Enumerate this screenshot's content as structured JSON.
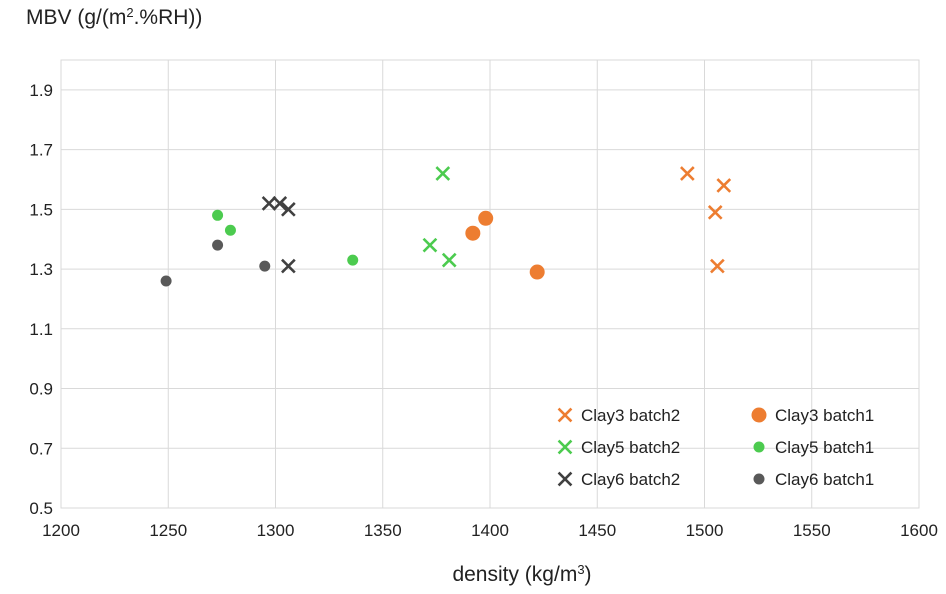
{
  "chart_data": {
    "type": "scatter",
    "title_main": "MBV (g/(m",
    "title_sup": "2",
    "title_rest": ".%RH))",
    "xlabel_main": "density (kg/m",
    "xlabel_sup": "3",
    "xlabel_rest": ")",
    "xlim": [
      1200,
      1600
    ],
    "ylim": [
      0.5,
      2.0
    ],
    "xticks": [
      1200,
      1250,
      1300,
      1350,
      1400,
      1450,
      1500,
      1550,
      1600
    ],
    "yticks": [
      0.5,
      0.7,
      0.9,
      1.1,
      1.3,
      1.5,
      1.7,
      1.9
    ],
    "ytick_labels": [
      "0.5",
      "0.7",
      "0.9",
      "1.1",
      "1.3",
      "1.5",
      "1.7",
      "1.9"
    ],
    "grid": true,
    "legend_position": "bottom-right",
    "series": [
      {
        "name": "Clay3 batch2",
        "marker": "x",
        "color": "#ED7D31",
        "points": [
          [
            1492,
            1.62
          ],
          [
            1509,
            1.58
          ],
          [
            1505,
            1.49
          ],
          [
            1506,
            1.31
          ]
        ]
      },
      {
        "name": "Clay3 batch1",
        "marker": "circle-large",
        "color": "#ED7D31",
        "points": [
          [
            1398,
            1.47
          ],
          [
            1392,
            1.42
          ],
          [
            1422,
            1.29
          ]
        ]
      },
      {
        "name": "Clay5 batch2",
        "marker": "x",
        "color": "#4CCB4F",
        "points": [
          [
            1378,
            1.62
          ],
          [
            1372,
            1.38
          ],
          [
            1381,
            1.33
          ]
        ]
      },
      {
        "name": "Clay5 batch1",
        "marker": "circle",
        "color": "#4CCB4F",
        "points": [
          [
            1273,
            1.48
          ],
          [
            1279,
            1.43
          ],
          [
            1336,
            1.33
          ]
        ]
      },
      {
        "name": "Clay6 batch2",
        "marker": "x",
        "color": "#404040",
        "points": [
          [
            1297,
            1.52
          ],
          [
            1302,
            1.52
          ],
          [
            1306,
            1.5
          ],
          [
            1306,
            1.31
          ]
        ]
      },
      {
        "name": "Clay6 batch1",
        "marker": "circle",
        "color": "#595959",
        "points": [
          [
            1249,
            1.26
          ],
          [
            1273,
            1.38
          ],
          [
            1295,
            1.31
          ]
        ]
      }
    ]
  }
}
